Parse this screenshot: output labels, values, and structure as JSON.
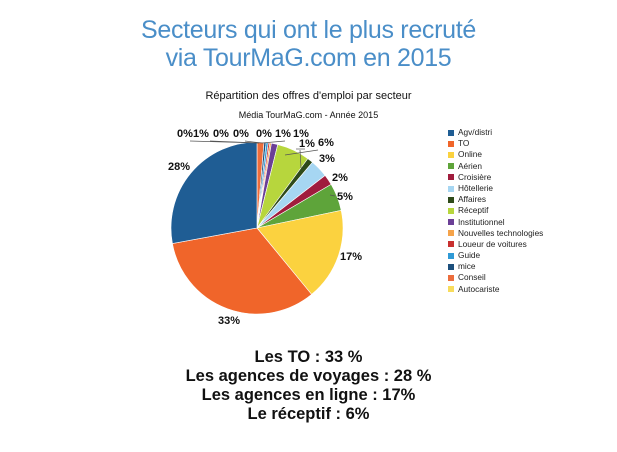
{
  "headline": {
    "line1": "Secteurs qui ont le plus recruté",
    "line2": "via TourMaG.com en 2015"
  },
  "chart_data": {
    "type": "pie",
    "title": "Répartition des offres d'emploi par secteur",
    "subtitle": "Média TourMaG.com - Année 2015",
    "legend_position": "right",
    "categories": [
      "Agv/distri",
      "TO",
      "Online",
      "Aérien",
      "Croisière",
      "Hôtellerie",
      "Affaires",
      "Réceptif",
      "Institutionnel",
      "Nouvelles technologies",
      "Loueur de voitures",
      "Guide",
      "mice",
      "Conseil",
      "Autocariste"
    ],
    "values": [
      28,
      33,
      17,
      5,
      2,
      3,
      1,
      6,
      1,
      0,
      0,
      0,
      0,
      1,
      0
    ],
    "labels": [
      "28%",
      "33%",
      "17%",
      "5%",
      "2%",
      "3%",
      "1%",
      "6%",
      "1%",
      "0%",
      "0%",
      "0%",
      "0%",
      "1%",
      "0%"
    ],
    "colors": [
      "#1f5d94",
      "#f0652a",
      "#fbd23f",
      "#5ea43a",
      "#a01c3d",
      "#a6d6f2",
      "#2e4a1a",
      "#b7d63d",
      "#6b3f96",
      "#f5a34a",
      "#c8302f",
      "#2f9ad6",
      "#1c4f7c",
      "#ec6d3c",
      "#f8dc5c"
    ]
  },
  "summary": {
    "line1": "Les TO : 33 %",
    "line2": "Les agences de voyages : 28 %",
    "line3": "Les agences en ligne : 17%",
    "line4": "Le réceptif : 6%"
  }
}
